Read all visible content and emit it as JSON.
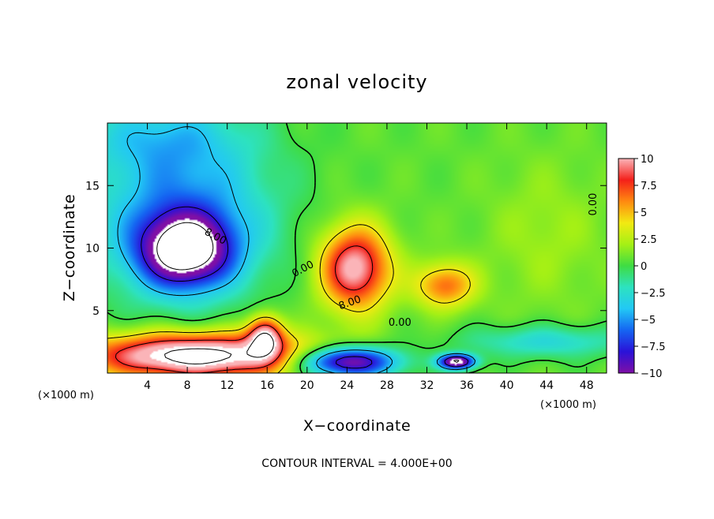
{
  "chart_data": {
    "type": "heatmap",
    "title": "zonal velocity",
    "xlabel": "X−coordinate",
    "ylabel": "Z−coordinate",
    "x_unit_left": "(×1000 m)",
    "x_unit_right": "(×1000 m)",
    "footer": "CONTOUR INTERVAL = 4.000E+00",
    "xlim": [
      0,
      50
    ],
    "ylim": [
      0,
      20
    ],
    "x_ticks": [
      4,
      8,
      12,
      16,
      20,
      24,
      28,
      32,
      36,
      40,
      44,
      48
    ],
    "x_tick_labels": [
      "4",
      "8",
      "12",
      "16",
      "20",
      "24",
      "28",
      "32",
      "36",
      "40",
      "44",
      "48"
    ],
    "y_ticks": [
      5,
      10,
      15
    ],
    "y_tick_labels": [
      "5",
      "10",
      "15"
    ],
    "colorbar": {
      "range": [
        -10,
        10
      ],
      "ticks": [
        10,
        7.5,
        5,
        2.5,
        0,
        -2.5,
        -5,
        -7.5,
        -10
      ],
      "labels": [
        "10",
        "7.5",
        "5",
        "2.5",
        "0",
        "−2.5",
        "−5",
        "−7.5",
        "−10"
      ]
    },
    "contour_labels": [
      {
        "text": "8.00",
        "x": 10.8,
        "y": 10.9,
        "rotation": 28
      },
      {
        "text": "0.00",
        "x": 19.6,
        "y": 8.3,
        "rotation": -28
      },
      {
        "text": "8.00",
        "x": 24.3,
        "y": 5.6,
        "rotation": -20
      },
      {
        "text": "0.00",
        "x": 29.3,
        "y": 4.0,
        "rotation": 0
      },
      {
        "text": "0.00",
        "x": 48.7,
        "y": 13.5,
        "rotation": -90
      }
    ],
    "features": [
      {
        "name": "upper-left negative jet core",
        "x": 7.8,
        "y": 9.8,
        "rx": 4.4,
        "ry": 2.8,
        "value": -12
      },
      {
        "name": "upper-left negative jet halo",
        "x": 7.5,
        "y": 12.5,
        "rx": 9.0,
        "ry": 6.5,
        "value": -6
      },
      {
        "name": "central positive jet core",
        "x": 24.8,
        "y": 8.4,
        "rx": 3.5,
        "ry": 3.3,
        "value": 10
      },
      {
        "name": "near-surface positive jet",
        "x": 9.0,
        "y": 1.4,
        "rx": 11.0,
        "ry": 1.8,
        "value": 13
      },
      {
        "name": "near-surface negative core",
        "x": 24.0,
        "y": 0.9,
        "rx": 5.0,
        "ry": 1.2,
        "value": -12
      },
      {
        "name": "small positive feature",
        "x": 15.8,
        "y": 3.0,
        "rx": 1.7,
        "ry": 1.6,
        "value": 9
      },
      {
        "name": "positive patch east",
        "x": 33.8,
        "y": 7.0,
        "rx": 3.0,
        "ry": 1.8,
        "value": 6
      },
      {
        "name": "negative cell near 35km",
        "x": 35.0,
        "y": 0.9,
        "rx": 1.8,
        "ry": 0.6,
        "value": -13
      }
    ]
  }
}
